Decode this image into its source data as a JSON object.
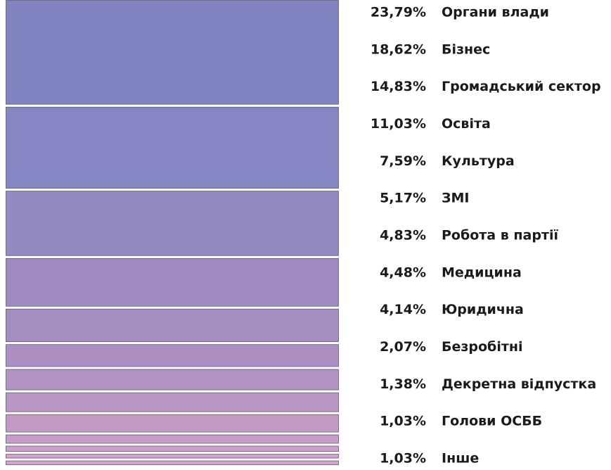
{
  "chart_data": {
    "type": "stacked-bar",
    "categories": [
      "Органи влади",
      "Бізнес",
      "Громадський сектор",
      "Освіта",
      "Культура",
      "ЗМІ",
      "Робота в партії",
      "Медицина",
      "Юридична",
      "Безробітні",
      "Декретна відпустка",
      "Голови ОСББ",
      "Інше"
    ],
    "values": [
      23.79,
      18.62,
      14.83,
      11.03,
      7.59,
      5.17,
      4.83,
      4.48,
      4.14,
      2.07,
      1.38,
      1.03,
      1.03
    ],
    "value_labels": [
      "23,79%",
      "18,62%",
      "14,83%",
      "11,03%",
      "7,59%",
      "5,17%",
      "4,83%",
      "4,48%",
      "4,14%",
      "2,07%",
      "1,38%",
      "1,03%",
      "1,03%"
    ],
    "colors": [
      "#8083c0",
      "#8686c2",
      "#9489c0",
      "#9f8bc0",
      "#a68dc1",
      "#ad8fc2",
      "#b393c3",
      "#ba96c4",
      "#c29ac6",
      "#c99cc8",
      "#cf9fca",
      "#d4a1cc",
      "#d9a3cd"
    ]
  }
}
